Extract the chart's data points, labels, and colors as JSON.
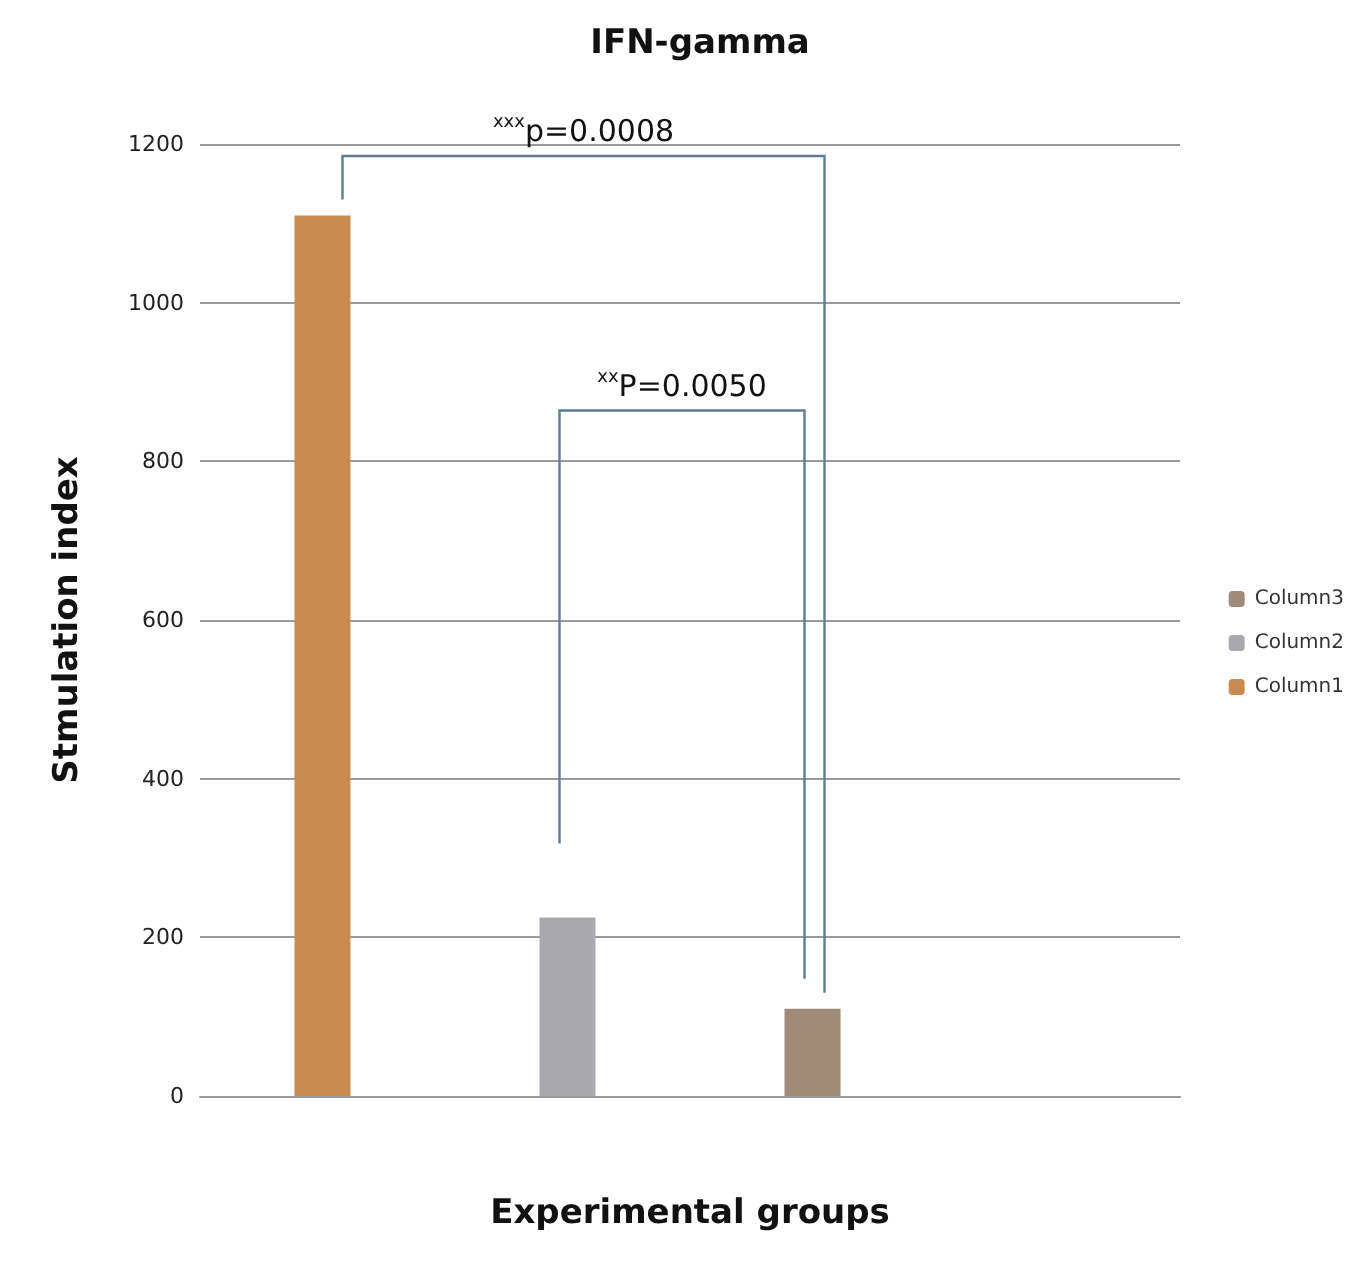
{
  "chart_data": {
    "type": "bar",
    "title": "IFN-gamma",
    "xlabel": "Experimental groups",
    "ylabel": "Stmulation index",
    "categories": [
      null,
      null,
      null,
      null
    ],
    "series": [
      {
        "name": "Column1",
        "color": "#c98a52",
        "values": [
          1110,
          null,
          null,
          null
        ]
      },
      {
        "name": "Column2",
        "color": "#a9a9ad",
        "values": [
          null,
          225,
          null,
          null
        ]
      },
      {
        "name": "Column3",
        "color": "#a08a78",
        "values": [
          null,
          null,
          110,
          null
        ]
      }
    ],
    "stacked": true,
    "ylim": [
      0,
      1200
    ],
    "yticks": [
      0,
      200,
      400,
      600,
      800,
      1000,
      1200
    ],
    "grid": "y",
    "legend": "right",
    "annotations": [
      "$^{xxx}$p=0.0008",
      "$^{xx}$P=0.0050"
    ]
  }
}
